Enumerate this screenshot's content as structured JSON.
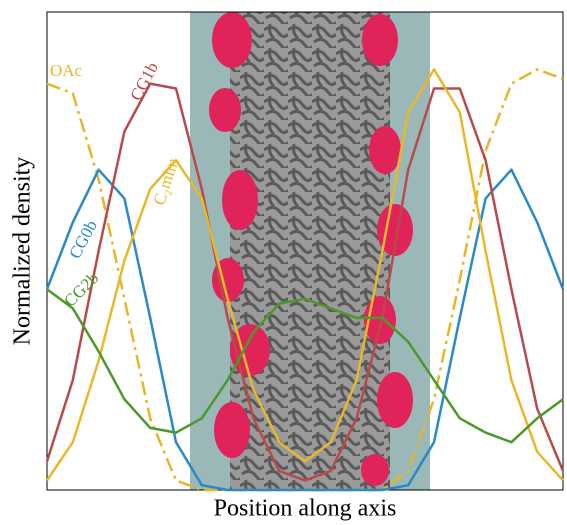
{
  "chart_data": {
    "type": "line",
    "x_label": "Position along axis",
    "y_label": "Normalized density",
    "x": [
      0,
      0.05,
      0.1,
      0.15,
      0.2,
      0.25,
      0.3,
      0.35,
      0.4,
      0.45,
      0.5,
      0.55,
      0.6,
      0.65,
      0.7,
      0.75,
      0.8,
      0.85,
      0.9,
      0.95,
      1
    ],
    "xlim": [
      0,
      1
    ],
    "ylim": [
      0,
      1
    ],
    "series": [
      {
        "name": "OAc",
        "color": "#e8b52a",
        "dash": true,
        "values": [
          0.85,
          0.83,
          0.65,
          0.4,
          0.15,
          0.02,
          0,
          0,
          0,
          0,
          0,
          0,
          0,
          0,
          0.04,
          0.19,
          0.44,
          0.71,
          0.85,
          0.88,
          0.86
        ]
      },
      {
        "name": "CG0b",
        "color": "#2a8ac8",
        "values": [
          0.42,
          0.56,
          0.67,
          0.61,
          0.36,
          0.1,
          0.01,
          0,
          0,
          0,
          0,
          0,
          0,
          0,
          0.01,
          0.1,
          0.36,
          0.61,
          0.67,
          0.56,
          0.42
        ]
      },
      {
        "name": "CG1b",
        "color": "#b84a4a",
        "values": [
          0.06,
          0.23,
          0.5,
          0.75,
          0.85,
          0.84,
          0.63,
          0.36,
          0.15,
          0.04,
          0.02,
          0.04,
          0.15,
          0.36,
          0.67,
          0.84,
          0.84,
          0.69,
          0.42,
          0.17,
          0.04
        ]
      },
      {
        "name": "C₂mim",
        "color": "#e8b82a",
        "values": [
          0.02,
          0.1,
          0.27,
          0.48,
          0.63,
          0.69,
          0.61,
          0.4,
          0.21,
          0.1,
          0.06,
          0.1,
          0.23,
          0.5,
          0.79,
          0.88,
          0.79,
          0.5,
          0.23,
          0.08,
          0.02
        ]
      },
      {
        "name": "CG2b",
        "color": "#4a9a2a",
        "values": [
          0.42,
          0.38,
          0.29,
          0.19,
          0.13,
          0.12,
          0.15,
          0.23,
          0.33,
          0.39,
          0.4,
          0.38,
          0.36,
          0.36,
          0.31,
          0.23,
          0.15,
          0.12,
          0.1,
          0.15,
          0.19
        ]
      }
    ]
  }
}
